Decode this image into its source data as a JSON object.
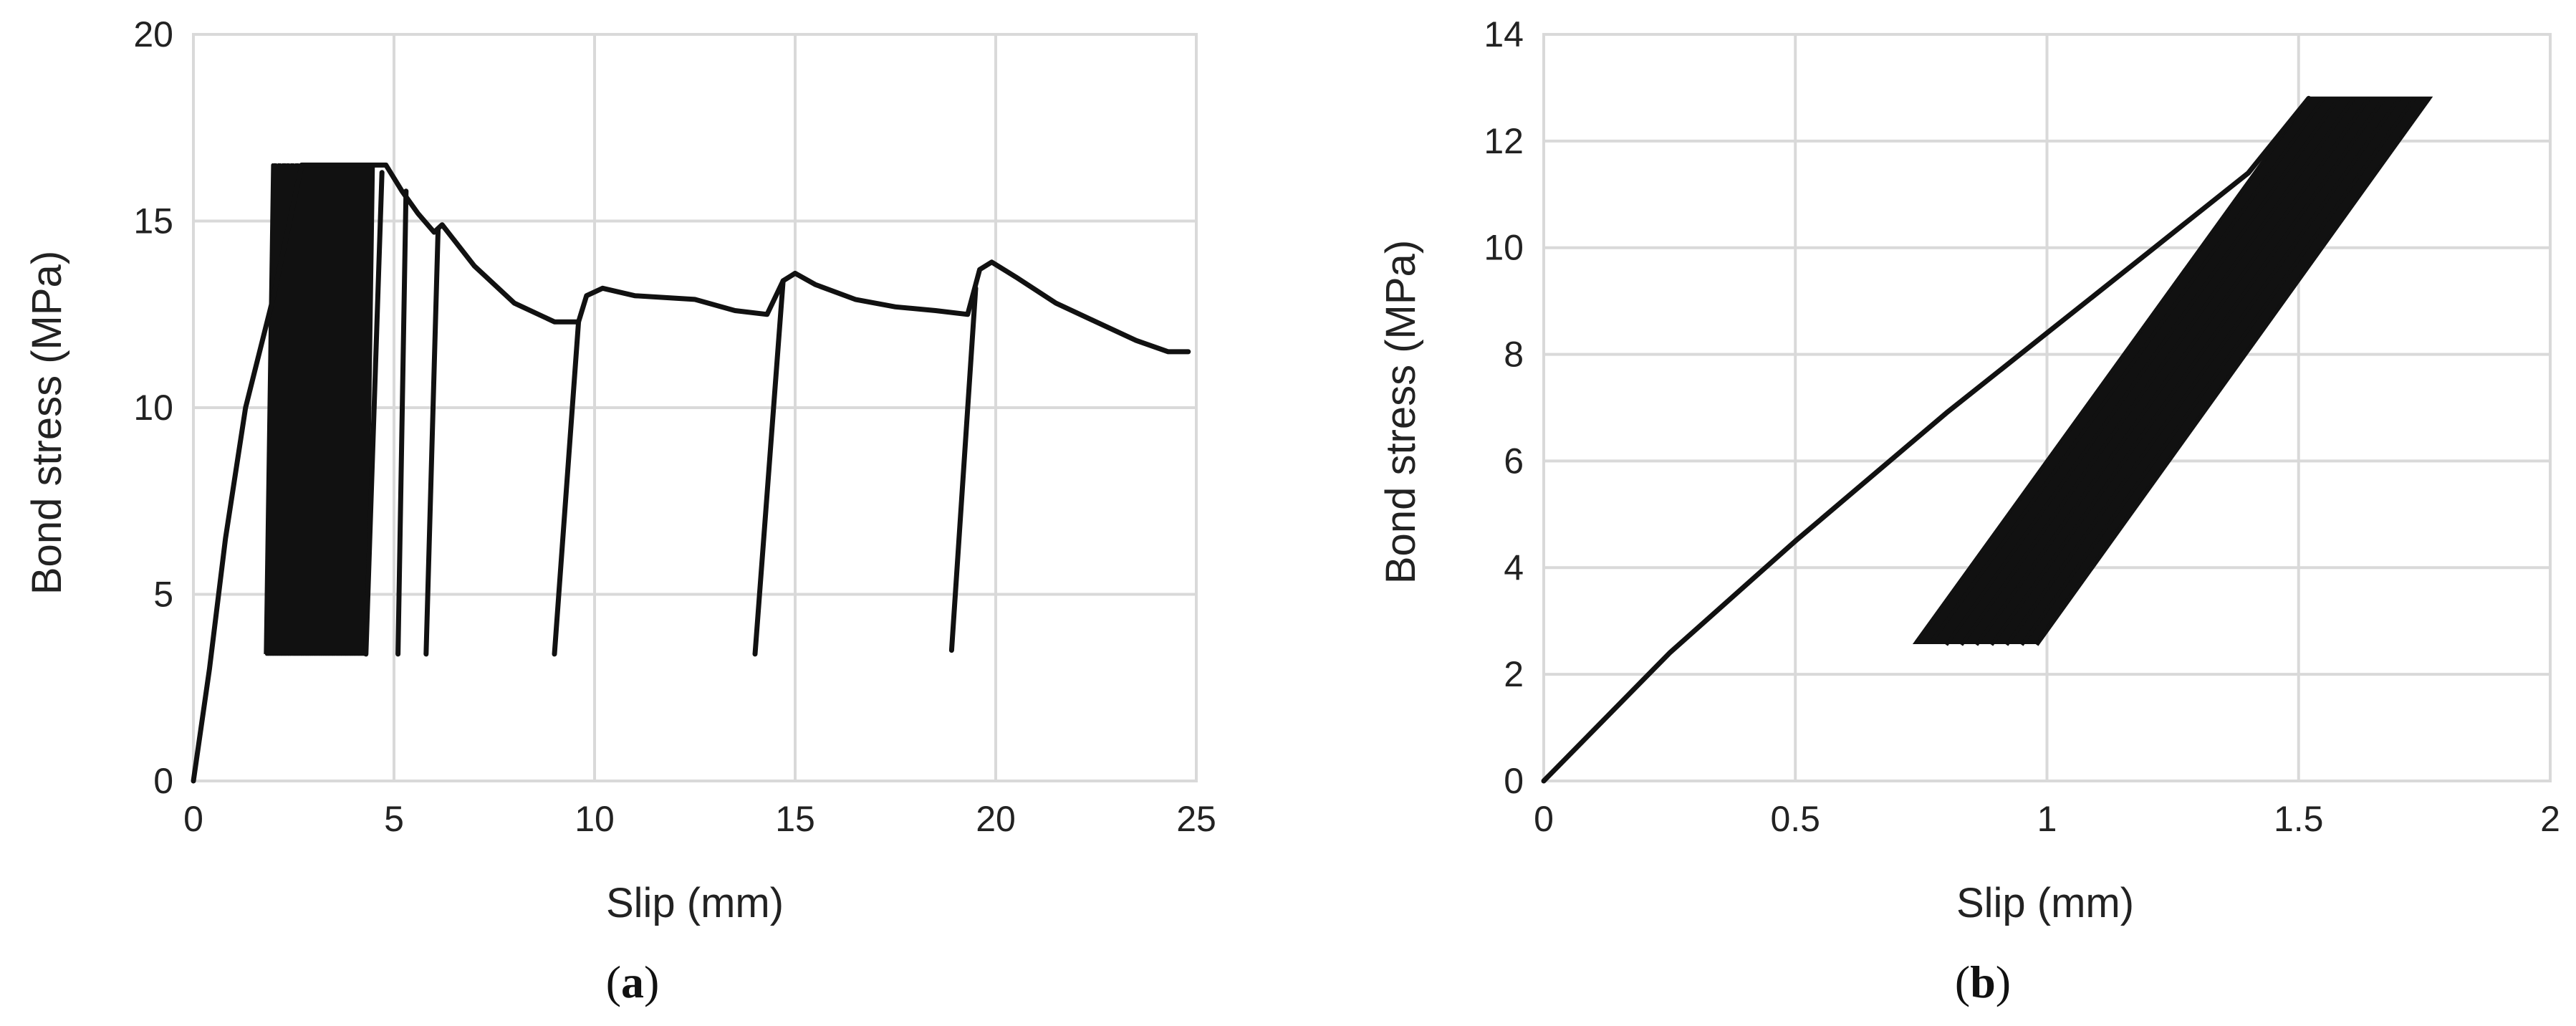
{
  "chart_data": [
    {
      "type": "line",
      "panel_label": "a",
      "title": "",
      "xlabel": "Slip (mm)",
      "ylabel": "Bond stress (MPa)",
      "xlim": [
        0,
        25
      ],
      "ylim": [
        0,
        20
      ],
      "xticks": [
        0,
        5,
        10,
        15,
        20,
        25
      ],
      "yticks": [
        0,
        5,
        10,
        15,
        20
      ],
      "grid": true,
      "legend": "none",
      "series": [
        {
          "envelope": [
            [
              0,
              0
            ],
            [
              0.4,
              3
            ],
            [
              0.8,
              6.5
            ],
            [
              1.3,
              10
            ],
            [
              2.0,
              13
            ],
            [
              2.7,
              16.5
            ],
            [
              4.8,
              16.5
            ],
            [
              5.2,
              15.8
            ],
            [
              5.6,
              15.2
            ],
            [
              6.0,
              14.7
            ],
            [
              6.2,
              14.9
            ],
            [
              7.0,
              13.8
            ],
            [
              8.0,
              12.8
            ],
            [
              9.0,
              12.3
            ],
            [
              9.6,
              12.3
            ],
            [
              9.8,
              13.0
            ],
            [
              10.2,
              13.2
            ],
            [
              11.0,
              13.0
            ],
            [
              12.5,
              12.9
            ],
            [
              13.5,
              12.6
            ],
            [
              14.3,
              12.5
            ],
            [
              14.7,
              13.4
            ],
            [
              15.0,
              13.6
            ],
            [
              15.5,
              13.3
            ],
            [
              16.5,
              12.9
            ],
            [
              17.5,
              12.7
            ],
            [
              18.5,
              12.6
            ],
            [
              19.3,
              12.5
            ],
            [
              19.6,
              13.7
            ],
            [
              19.9,
              13.9
            ],
            [
              20.5,
              13.5
            ],
            [
              21.5,
              12.8
            ],
            [
              22.5,
              12.3
            ],
            [
              23.5,
              11.8
            ],
            [
              24.3,
              11.5
            ],
            [
              24.8,
              11.5
            ]
          ],
          "dense_cycling_band": {
            "slip_min": 1.8,
            "slip_max": 4.3,
            "stress_min": 3.4,
            "stress_max": 16.5
          },
          "reloading_branches": [
            [
              [
                4.3,
                3.4
              ],
              [
                4.7,
                16.3
              ]
            ],
            [
              [
                5.1,
                3.4
              ],
              [
                5.3,
                15.8
              ]
            ],
            [
              [
                5.8,
                3.4
              ],
              [
                6.1,
                14.8
              ]
            ],
            [
              [
                9.0,
                3.4
              ],
              [
                9.6,
                12.3
              ]
            ],
            [
              [
                14.0,
                3.4
              ],
              [
                14.7,
                13.4
              ]
            ],
            [
              [
                18.9,
                3.5
              ],
              [
                19.5,
                13.2
              ]
            ]
          ]
        }
      ]
    },
    {
      "type": "line",
      "panel_label": "b",
      "title": "",
      "xlabel": "Slip (mm)",
      "ylabel": "Bond stress (MPa)",
      "xlim": [
        0,
        2
      ],
      "ylim": [
        0,
        14
      ],
      "xticks": [
        0,
        0.5,
        1,
        1.5,
        2
      ],
      "yticks": [
        0,
        2,
        4,
        6,
        8,
        10,
        12,
        14
      ],
      "grid": true,
      "legend": "none",
      "series": [
        {
          "envelope": [
            [
              0,
              0
            ],
            [
              0.25,
              2.4
            ],
            [
              0.5,
              4.5
            ],
            [
              0.8,
              6.9
            ],
            [
              1.0,
              8.4
            ],
            [
              1.2,
              9.9
            ],
            [
              1.4,
              11.4
            ],
            [
              1.52,
              12.8
            ]
          ],
          "dense_cycling_band": {
            "bottom_left": [
              0.74,
              2.6
            ],
            "bottom_right": [
              0.98,
              2.6
            ],
            "top_left": [
              1.52,
              12.8
            ],
            "top_right": [
              1.76,
              12.8
            ]
          }
        }
      ]
    }
  ]
}
